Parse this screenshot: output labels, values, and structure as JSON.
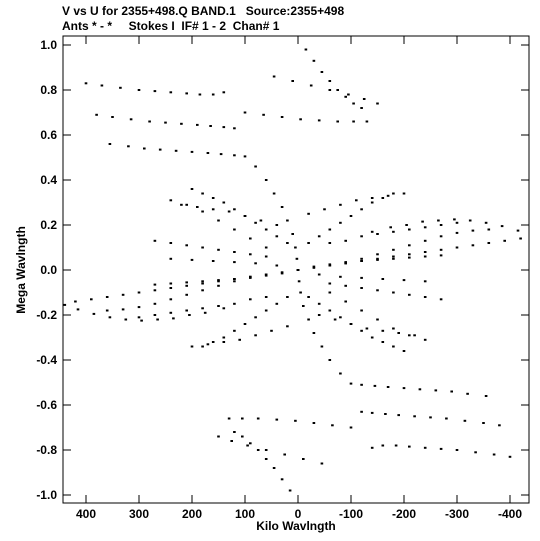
{
  "header": {
    "line1": "V vs U for 2355+498.Q BAND.1   Source:2355+498",
    "line2": "Ants * - *     Stokes I  IF# 1 - 2  Chan# 1"
  },
  "chart_data": {
    "type": "scatter",
    "xlabel": "Kilo Wavlngth",
    "ylabel": "Mega Wavlngth",
    "xlim": [
      450,
      -450
    ],
    "ylim": [
      -1.02,
      1.02
    ],
    "x_ticks": [
      400,
      300,
      200,
      100,
      0,
      -100,
      -200,
      -300,
      -400
    ],
    "x_tick_labels": [
      "400",
      "300",
      "200",
      "100",
      "0",
      "-100",
      "-200",
      "-300",
      "-400"
    ],
    "y_ticks": [
      1.0,
      0.8,
      0.6,
      0.4,
      0.2,
      0.0,
      -0.2,
      -0.4,
      -0.6,
      -0.8,
      -1.0
    ],
    "y_tick_labels": [
      "1.0",
      "0.8",
      "0.6",
      "0.4",
      "0.2",
      "0.0",
      "-0.2",
      "-0.4",
      "-0.6",
      "-0.8",
      "-1.0"
    ],
    "grid": false,
    "marker_color": "#000000",
    "tracks_description": "uv-coverage: radial baseline tracks with point-symmetric mirror (u,v) -> (-u,-v)",
    "tracks": [
      {
        "points": [
          [
            400,
            0.83
          ],
          [
            370,
            0.82
          ],
          [
            335,
            0.81
          ],
          [
            300,
            0.8
          ],
          [
            270,
            0.795
          ],
          [
            240,
            0.79
          ],
          [
            210,
            0.785
          ],
          [
            185,
            0.78
          ],
          [
            160,
            0.78
          ],
          [
            140,
            0.79
          ]
        ]
      },
      {
        "points": [
          [
            380,
            0.69
          ],
          [
            350,
            0.68
          ],
          [
            315,
            0.67
          ],
          [
            280,
            0.66
          ],
          [
            250,
            0.655
          ],
          [
            220,
            0.65
          ],
          [
            190,
            0.645
          ],
          [
            165,
            0.64
          ],
          [
            140,
            0.635
          ],
          [
            120,
            0.63
          ]
        ]
      },
      {
        "points": [
          [
            355,
            0.56
          ],
          [
            320,
            0.55
          ],
          [
            290,
            0.54
          ],
          [
            260,
            0.535
          ],
          [
            230,
            0.53
          ],
          [
            200,
            0.525
          ],
          [
            170,
            0.52
          ],
          [
            145,
            0.515
          ],
          [
            120,
            0.51
          ],
          [
            100,
            0.505
          ]
        ]
      },
      {
        "points": [
          [
            -15,
            0.98
          ],
          [
            -30,
            0.93
          ],
          [
            -45,
            0.88
          ],
          [
            -60,
            0.84
          ],
          [
            -75,
            0.8
          ],
          [
            -90,
            0.77
          ],
          [
            -105,
            0.74
          ],
          [
            -120,
            0.72
          ]
        ]
      },
      {
        "points": [
          [
            45,
            0.86
          ],
          [
            10,
            0.84
          ],
          [
            -25,
            0.82
          ],
          [
            -60,
            0.8
          ],
          [
            -95,
            0.78
          ],
          [
            -125,
            0.76
          ],
          [
            -150,
            0.74
          ]
        ]
      },
      {
        "points": [
          [
            100,
            0.7
          ],
          [
            65,
            0.69
          ],
          [
            30,
            0.68
          ],
          [
            -5,
            0.67
          ],
          [
            -40,
            0.665
          ],
          [
            -75,
            0.66
          ],
          [
            -105,
            0.66
          ],
          [
            -130,
            0.66
          ]
        ]
      },
      {
        "points": [
          [
            80,
            0.46
          ],
          [
            60,
            0.4
          ],
          [
            45,
            0.34
          ],
          [
            30,
            0.28
          ],
          [
            20,
            0.22
          ],
          [
            10,
            0.16
          ],
          [
            5,
            0.1
          ],
          [
            2,
            0.05
          ]
        ]
      },
      {
        "points": [
          [
            -140,
            0.17
          ],
          [
            -175,
            0.19
          ],
          [
            -205,
            0.2
          ],
          [
            -235,
            0.215
          ],
          [
            -265,
            0.22
          ],
          [
            -295,
            0.225
          ],
          [
            -325,
            0.22
          ],
          [
            -355,
            0.21
          ],
          [
            -385,
            0.195
          ],
          [
            -415,
            0.175
          ],
          [
            -440,
            0.155
          ]
        ]
      },
      {
        "points": [
          [
            -60,
            0.02
          ],
          [
            -90,
            0.03
          ],
          [
            -120,
            0.05
          ],
          [
            -150,
            0.07
          ],
          [
            -180,
            0.09
          ],
          [
            -210,
            0.11
          ],
          [
            -240,
            0.13
          ],
          [
            -270,
            0.15
          ],
          [
            -300,
            0.165
          ],
          [
            -330,
            0.175
          ],
          [
            -360,
            0.18
          ]
        ]
      },
      {
        "points": [
          [
            60,
            0.1
          ],
          [
            90,
            0.14
          ],
          [
            120,
            0.18
          ],
          [
            150,
            0.22
          ],
          [
            180,
            0.26
          ],
          [
            210,
            0.29
          ],
          [
            240,
            0.31
          ]
        ]
      },
      {
        "points": [
          [
            -20,
            0.25
          ],
          [
            -50,
            0.27
          ],
          [
            -80,
            0.29
          ],
          [
            -110,
            0.31
          ],
          [
            -140,
            0.32
          ],
          [
            -170,
            0.33
          ],
          [
            -200,
            0.34
          ]
        ]
      },
      {
        "points": [
          [
            40,
            0.2
          ],
          [
            70,
            0.22
          ],
          [
            100,
            0.24
          ],
          [
            130,
            0.26
          ],
          [
            160,
            0.27
          ],
          [
            190,
            0.28
          ],
          [
            220,
            0.29
          ]
        ]
      },
      {
        "points": [
          [
            0,
            0.0
          ],
          [
            -30,
            0.015
          ],
          [
            -60,
            0.025
          ],
          [
            -90,
            0.035
          ],
          [
            -120,
            0.04
          ],
          [
            -150,
            0.045
          ],
          [
            -180,
            0.05
          ],
          [
            -210,
            0.055
          ],
          [
            -240,
            0.06
          ],
          [
            -270,
            0.065
          ]
        ]
      },
      {
        "points": [
          [
            0,
            0.0
          ],
          [
            30,
            -0.01
          ],
          [
            60,
            -0.02
          ],
          [
            90,
            -0.03
          ],
          [
            120,
            -0.04
          ],
          [
            150,
            -0.05
          ],
          [
            180,
            -0.06
          ],
          [
            210,
            -0.07
          ],
          [
            240,
            -0.08
          ],
          [
            270,
            -0.09
          ],
          [
            300,
            -0.1
          ],
          [
            330,
            -0.11
          ],
          [
            360,
            -0.12
          ],
          [
            390,
            -0.13
          ],
          [
            420,
            -0.14
          ]
        ]
      },
      {
        "points": [
          [
            0,
            0.0
          ],
          [
            40,
            0.02
          ],
          [
            80,
            0.03
          ],
          [
            120,
            0.035
          ],
          [
            160,
            0.04
          ],
          [
            200,
            0.045
          ],
          [
            240,
            0.05
          ]
        ]
      },
      {
        "points": [
          [
            -20,
            0.12
          ],
          [
            -40,
            0.15
          ],
          [
            -60,
            0.18
          ],
          [
            -80,
            0.21
          ],
          [
            -100,
            0.24
          ],
          [
            -120,
            0.27
          ],
          [
            -140,
            0.3
          ],
          [
            -160,
            0.32
          ],
          [
            -180,
            0.34
          ]
        ]
      },
      {
        "points": [
          [
            20,
            0.12
          ],
          [
            40,
            0.15
          ],
          [
            60,
            0.18
          ],
          [
            80,
            0.21
          ],
          [
            100,
            0.24
          ],
          [
            120,
            0.27
          ],
          [
            140,
            0.3
          ],
          [
            160,
            0.32
          ],
          [
            180,
            0.34
          ],
          [
            200,
            0.36
          ]
        ]
      },
      {
        "points": [
          [
            -60,
            0.12
          ],
          [
            -90,
            0.13
          ],
          [
            -120,
            0.15
          ],
          [
            -150,
            0.16
          ],
          [
            -180,
            0.17
          ],
          [
            -210,
            0.18
          ],
          [
            -240,
            0.19
          ],
          [
            -270,
            0.2
          ],
          [
            -300,
            0.21
          ]
        ]
      },
      {
        "points": [
          [
            60,
            0.06
          ],
          [
            90,
            0.07
          ],
          [
            120,
            0.08
          ],
          [
            150,
            0.09
          ],
          [
            180,
            0.1
          ],
          [
            210,
            0.11
          ],
          [
            240,
            0.12
          ],
          [
            270,
            0.13
          ]
        ]
      }
    ]
  }
}
